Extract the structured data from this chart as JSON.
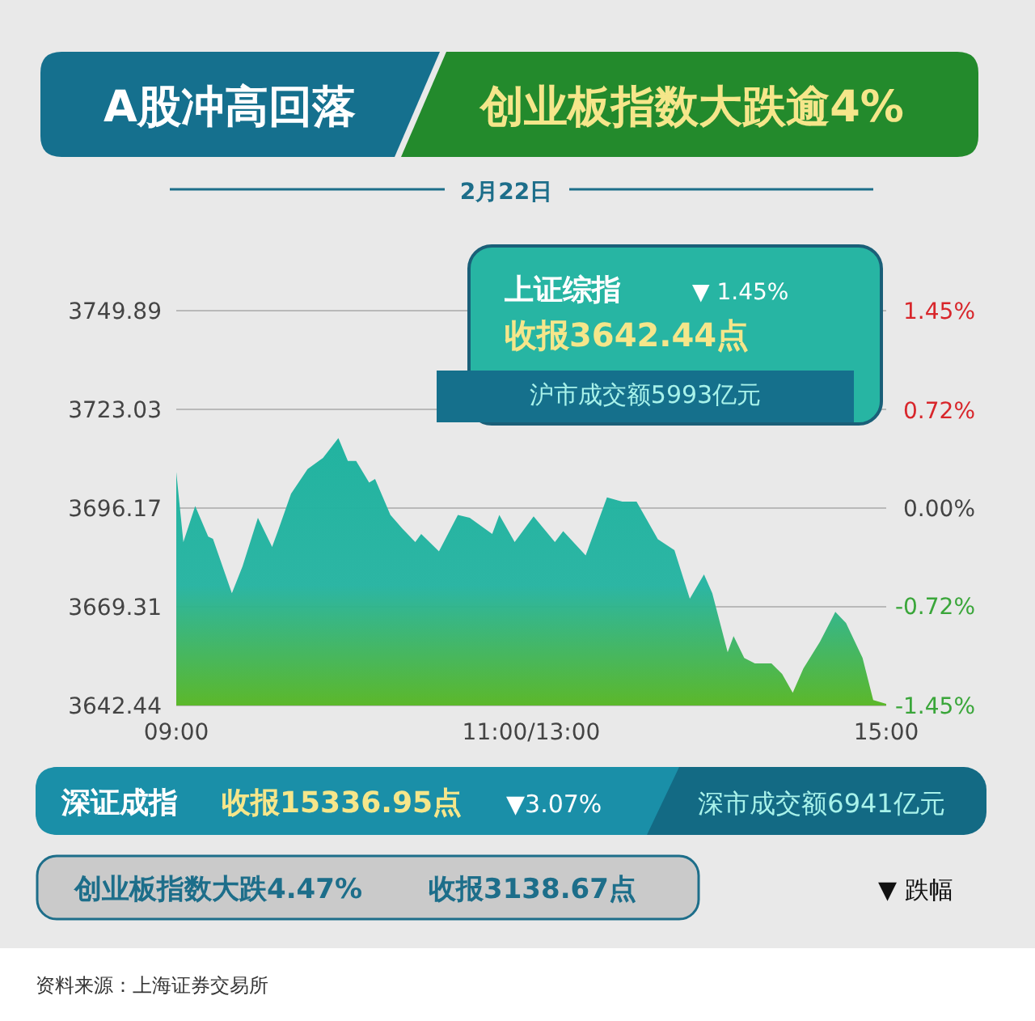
{
  "chart_data": {
    "type": "area",
    "title": "A股冲高回落",
    "subtitle": "创业板指数大跌逾4%",
    "x": [
      9,
      9.06,
      9.16,
      9.27,
      9.31,
      9.47,
      9.56,
      9.69,
      9.81,
      9.86,
      9.97,
      10.11,
      10.24,
      10.37,
      10.45,
      10.52,
      10.63,
      10.68,
      10.81,
      10.91,
      11.02,
      11.07,
      11.22,
      11.38,
      11.48,
      11.67,
      11.73,
      11.86,
      12.02,
      12.2,
      12.27,
      12.46,
      12.64,
      12.77,
      12.89,
      13.07,
      13.21,
      13.34,
      13.46,
      13.53,
      13.66,
      13.71,
      13.8,
      13.89,
      14.03,
      14.12,
      14.21,
      14.3,
      14.44,
      14.57,
      14.66,
      14.8,
      14.89,
      15
    ],
    "series": [
      {
        "color": "#22b3a0",
        "values": [
          3706.0,
          3686.9,
          3696.7,
          3688.4,
          3687.8,
          3673.0,
          3680.3,
          3693.5,
          3685.6,
          3690.0,
          3700.1,
          3706.8,
          3709.8,
          3715.2,
          3709.0,
          3709.0,
          3703.1,
          3704.1,
          3694.3,
          3690.6,
          3686.9,
          3689.1,
          3684.4,
          3694.3,
          3693.5,
          3689.1,
          3694.3,
          3686.9,
          3693.9,
          3686.9,
          3689.9,
          3683.3,
          3699.1,
          3697.9,
          3697.9,
          3687.7,
          3684.7,
          3671.5,
          3678.1,
          3673.0,
          3656.9,
          3661.3,
          3655.4,
          3653.9,
          3653.9,
          3651.0,
          3645.9,
          3652.5,
          3659.8,
          3667.9,
          3664.9,
          3655.4,
          3643.9,
          3642.9
        ]
      }
    ],
    "xlim": [
      9,
      15
    ],
    "xticks": [
      {
        "value": 9,
        "label": "09:00"
      },
      {
        "value": 12,
        "label": "11:00/13:00"
      },
      {
        "value": 15,
        "label": "15:00"
      }
    ],
    "ylim": [
      3642.44,
      3749.89
    ],
    "yticks": [
      3642.44,
      3669.31,
      3696.17,
      3723.03,
      3749.89
    ],
    "y2lim": [
      -1.45,
      1.45
    ],
    "y2ticks": [
      {
        "value": -1.45,
        "label": "-1.45%"
      },
      {
        "value": -0.72,
        "label": "-0.72%"
      },
      {
        "value": 0,
        "label": "0.00%"
      },
      {
        "value": 0.72,
        "label": "0.72%"
      },
      {
        "value": 1.45,
        "label": "1.45%"
      }
    ],
    "grid": "y",
    "annotations": [
      "2月22日",
      "上证综指",
      "▼ 1.45%",
      "收报3642.44点",
      "沪市成交额5993亿元",
      "深证成指",
      "收报15336.95点",
      "▼3.07%",
      "深市成交额6941亿元",
      "创业板指数大跌4.47%",
      "收报3138.67点",
      "▼ 跌幅",
      "资料来源：上海证券交易所"
    ]
  }
}
